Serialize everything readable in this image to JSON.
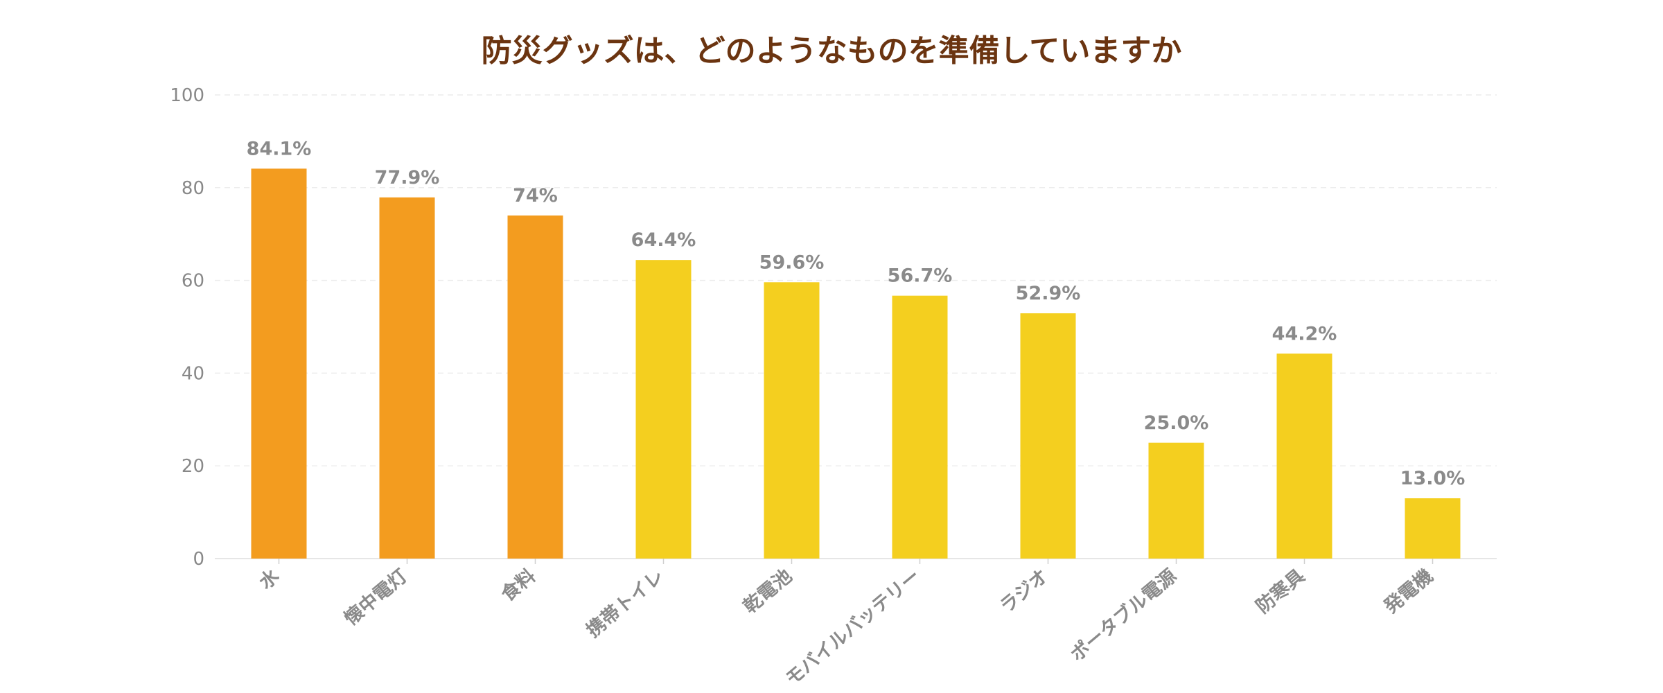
{
  "chart_data": {
    "type": "bar",
    "title": "防災グッズは、どのようなものを準備していますか",
    "xlabel": "",
    "ylabel": "",
    "ylim": [
      0,
      100
    ],
    "yticks": [
      0,
      20,
      40,
      60,
      80,
      100
    ],
    "grid": true,
    "categories": [
      "水",
      "懐中電灯",
      "食料",
      "携帯トイレ",
      "乾電池",
      "モバイルバッテリー",
      "ラジオ",
      "ポータブル電源",
      "防寒具",
      "発電機"
    ],
    "values": [
      84.1,
      77.9,
      74,
      64.4,
      59.6,
      56.7,
      52.9,
      25.0,
      44.2,
      13.0
    ],
    "data_labels": [
      "84.1%",
      "77.9%",
      "74%",
      "64.4%",
      "59.6%",
      "56.7%",
      "52.9%",
      "25.0%",
      "44.2%",
      "13.0%"
    ],
    "bar_colors": [
      "#f39c1f",
      "#f39c1f",
      "#f39c1f",
      "#f4cf1f",
      "#f4cf1f",
      "#f4cf1f",
      "#f4cf1f",
      "#f4cf1f",
      "#f4cf1f",
      "#f4cf1f"
    ]
  }
}
